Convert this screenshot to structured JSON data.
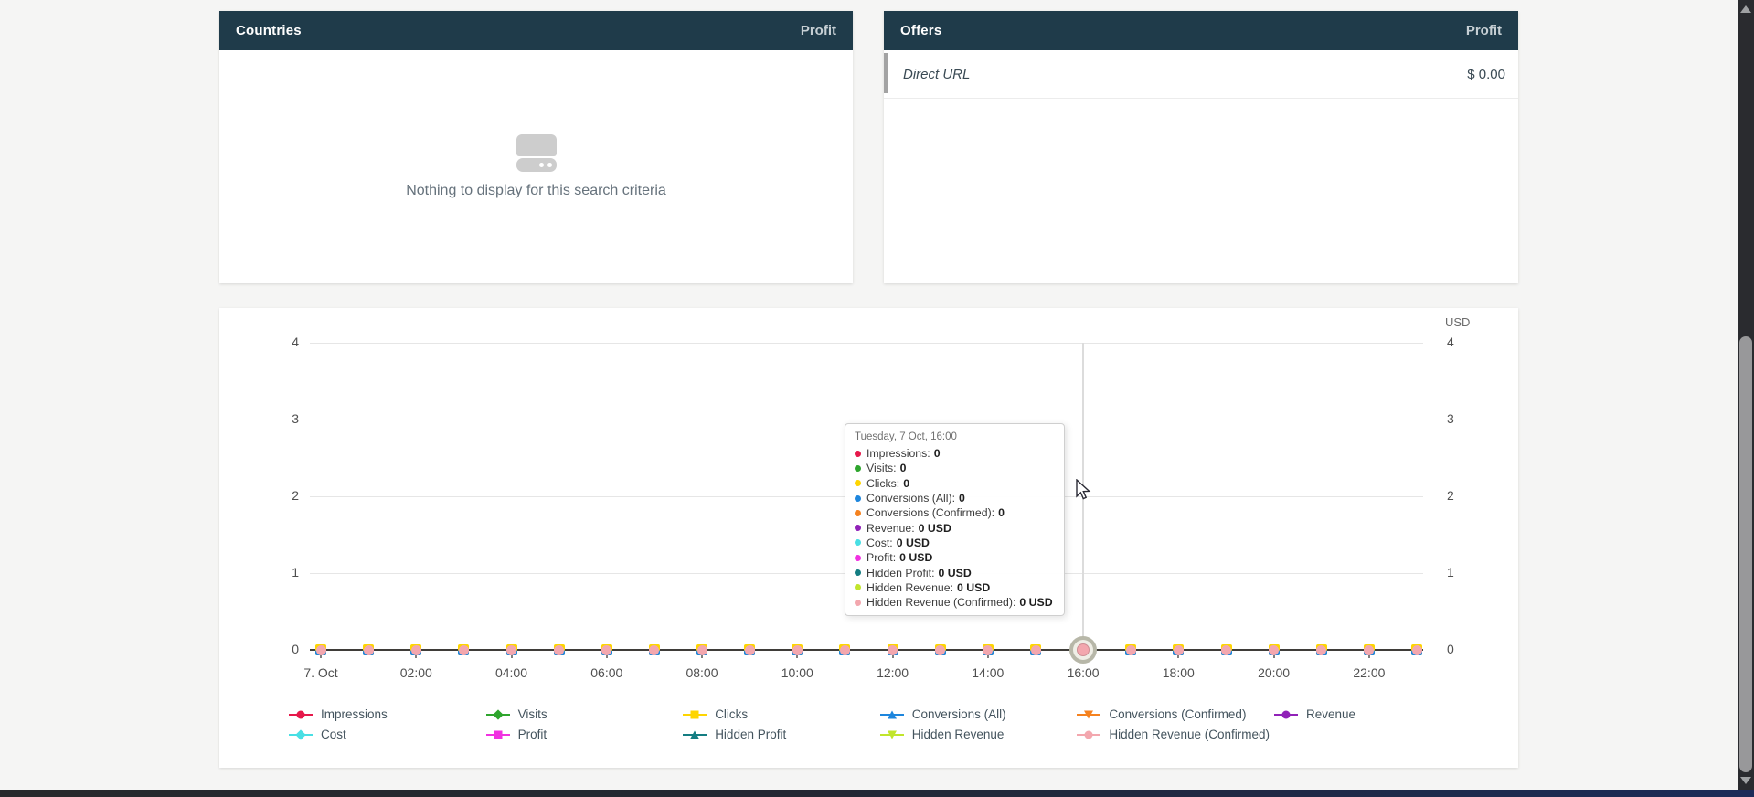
{
  "panels": {
    "countries": {
      "title": "Countries",
      "value_column": "Profit",
      "empty_text": "Nothing to display for this search criteria"
    },
    "offers": {
      "title": "Offers",
      "value_column": "Profit",
      "rows": [
        {
          "name": "Direct URL",
          "profit": "$ 0.00"
        }
      ]
    }
  },
  "chart": {
    "currency_label": "USD",
    "y_axis": {
      "ticks": [
        "4",
        "3",
        "2",
        "1",
        "0"
      ]
    },
    "x_axis": {
      "labels": [
        "7. Oct",
        "02:00",
        "04:00",
        "06:00",
        "08:00",
        "10:00",
        "12:00",
        "14:00",
        "16:00",
        "18:00",
        "20:00",
        "22:00"
      ]
    },
    "tooltip": {
      "title": "Tuesday, 7 Oct, 16:00",
      "rows": [
        {
          "label": "Impressions",
          "value": "0",
          "color": "#e6194b"
        },
        {
          "label": "Visits",
          "value": "0",
          "color": "#2ea52d"
        },
        {
          "label": "Clicks",
          "value": "0",
          "color": "#fed501"
        },
        {
          "label": "Conversions (All)",
          "value": "0",
          "color": "#1e86dd"
        },
        {
          "label": "Conversions (Confirmed)",
          "value": "0",
          "color": "#f5821f"
        },
        {
          "label": "Revenue",
          "value": "0 USD",
          "color": "#9122b8"
        },
        {
          "label": "Cost",
          "value": "0 USD",
          "color": "#49dfe4"
        },
        {
          "label": "Profit",
          "value": "0 USD",
          "color": "#f131e1"
        },
        {
          "label": "Hidden Profit",
          "value": "0 USD",
          "color": "#147d82"
        },
        {
          "label": "Hidden Revenue",
          "value": "0 USD",
          "color": "#c1e52c"
        },
        {
          "label": "Hidden Revenue (Confirmed)",
          "value": "0 USD",
          "color": "#f3a7ae"
        }
      ]
    },
    "legend": [
      {
        "label": "Impressions",
        "color": "#e6194b",
        "shape": "circle",
        "row": 0,
        "col": 0
      },
      {
        "label": "Visits",
        "color": "#2ea52d",
        "shape": "diamond",
        "row": 0,
        "col": 1
      },
      {
        "label": "Clicks",
        "color": "#fed501",
        "shape": "square",
        "row": 0,
        "col": 2
      },
      {
        "label": "Conversions (All)",
        "color": "#1e86dd",
        "shape": "tri-up",
        "row": 0,
        "col": 3
      },
      {
        "label": "Conversions (Confirmed)",
        "color": "#f5821f",
        "shape": "tri-down",
        "row": 0,
        "col": 4
      },
      {
        "label": "Revenue",
        "color": "#9122b8",
        "shape": "circle",
        "row": 0,
        "col": 5
      },
      {
        "label": "Cost",
        "color": "#49dfe4",
        "shape": "diamond",
        "row": 1,
        "col": 0
      },
      {
        "label": "Profit",
        "color": "#f131e1",
        "shape": "square",
        "row": 1,
        "col": 1
      },
      {
        "label": "Hidden Profit",
        "color": "#147d82",
        "shape": "tri-up",
        "row": 1,
        "col": 2
      },
      {
        "label": "Hidden Revenue",
        "color": "#c1e52c",
        "shape": "tri-down",
        "row": 1,
        "col": 3
      },
      {
        "label": "Hidden Revenue (Confirmed)",
        "color": "#f3a7ae",
        "shape": "circle",
        "row": 1,
        "col": 4
      }
    ],
    "highlighted_point": {
      "x_label": "16:00",
      "series": "Hidden Revenue (Confirmed)",
      "value": 0
    },
    "chart_data": {
      "type": "line",
      "x": [
        "00:00",
        "01:00",
        "02:00",
        "03:00",
        "04:00",
        "05:00",
        "06:00",
        "07:00",
        "08:00",
        "09:00",
        "10:00",
        "11:00",
        "12:00",
        "13:00",
        "14:00",
        "15:00",
        "16:00",
        "17:00",
        "18:00",
        "19:00",
        "20:00",
        "21:00",
        "22:00",
        "23:00"
      ],
      "date": "7. Oct",
      "series": [
        {
          "name": "Impressions",
          "values": [
            0,
            0,
            0,
            0,
            0,
            0,
            0,
            0,
            0,
            0,
            0,
            0,
            0,
            0,
            0,
            0,
            0,
            0,
            0,
            0,
            0,
            0,
            0,
            0
          ]
        },
        {
          "name": "Visits",
          "values": [
            0,
            0,
            0,
            0,
            0,
            0,
            0,
            0,
            0,
            0,
            0,
            0,
            0,
            0,
            0,
            0,
            0,
            0,
            0,
            0,
            0,
            0,
            0,
            0
          ]
        },
        {
          "name": "Clicks",
          "values": [
            0,
            0,
            0,
            0,
            0,
            0,
            0,
            0,
            0,
            0,
            0,
            0,
            0,
            0,
            0,
            0,
            0,
            0,
            0,
            0,
            0,
            0,
            0,
            0
          ]
        },
        {
          "name": "Conversions (All)",
          "values": [
            0,
            0,
            0,
            0,
            0,
            0,
            0,
            0,
            0,
            0,
            0,
            0,
            0,
            0,
            0,
            0,
            0,
            0,
            0,
            0,
            0,
            0,
            0,
            0
          ]
        },
        {
          "name": "Conversions (Confirmed)",
          "values": [
            0,
            0,
            0,
            0,
            0,
            0,
            0,
            0,
            0,
            0,
            0,
            0,
            0,
            0,
            0,
            0,
            0,
            0,
            0,
            0,
            0,
            0,
            0,
            0
          ]
        },
        {
          "name": "Revenue",
          "values": [
            0,
            0,
            0,
            0,
            0,
            0,
            0,
            0,
            0,
            0,
            0,
            0,
            0,
            0,
            0,
            0,
            0,
            0,
            0,
            0,
            0,
            0,
            0,
            0
          ]
        },
        {
          "name": "Cost",
          "values": [
            0,
            0,
            0,
            0,
            0,
            0,
            0,
            0,
            0,
            0,
            0,
            0,
            0,
            0,
            0,
            0,
            0,
            0,
            0,
            0,
            0,
            0,
            0,
            0
          ]
        },
        {
          "name": "Profit",
          "values": [
            0,
            0,
            0,
            0,
            0,
            0,
            0,
            0,
            0,
            0,
            0,
            0,
            0,
            0,
            0,
            0,
            0,
            0,
            0,
            0,
            0,
            0,
            0,
            0
          ]
        },
        {
          "name": "Hidden Profit",
          "values": [
            0,
            0,
            0,
            0,
            0,
            0,
            0,
            0,
            0,
            0,
            0,
            0,
            0,
            0,
            0,
            0,
            0,
            0,
            0,
            0,
            0,
            0,
            0,
            0
          ]
        },
        {
          "name": "Hidden Revenue",
          "values": [
            0,
            0,
            0,
            0,
            0,
            0,
            0,
            0,
            0,
            0,
            0,
            0,
            0,
            0,
            0,
            0,
            0,
            0,
            0,
            0,
            0,
            0,
            0,
            0
          ]
        },
        {
          "name": "Hidden Revenue (Confirmed)",
          "values": [
            0,
            0,
            0,
            0,
            0,
            0,
            0,
            0,
            0,
            0,
            0,
            0,
            0,
            0,
            0,
            0,
            0,
            0,
            0,
            0,
            0,
            0,
            0,
            0
          ]
        }
      ],
      "ylim": [
        0,
        4
      ],
      "y_unit": "USD",
      "grid": true,
      "legend_position": "bottom"
    }
  }
}
